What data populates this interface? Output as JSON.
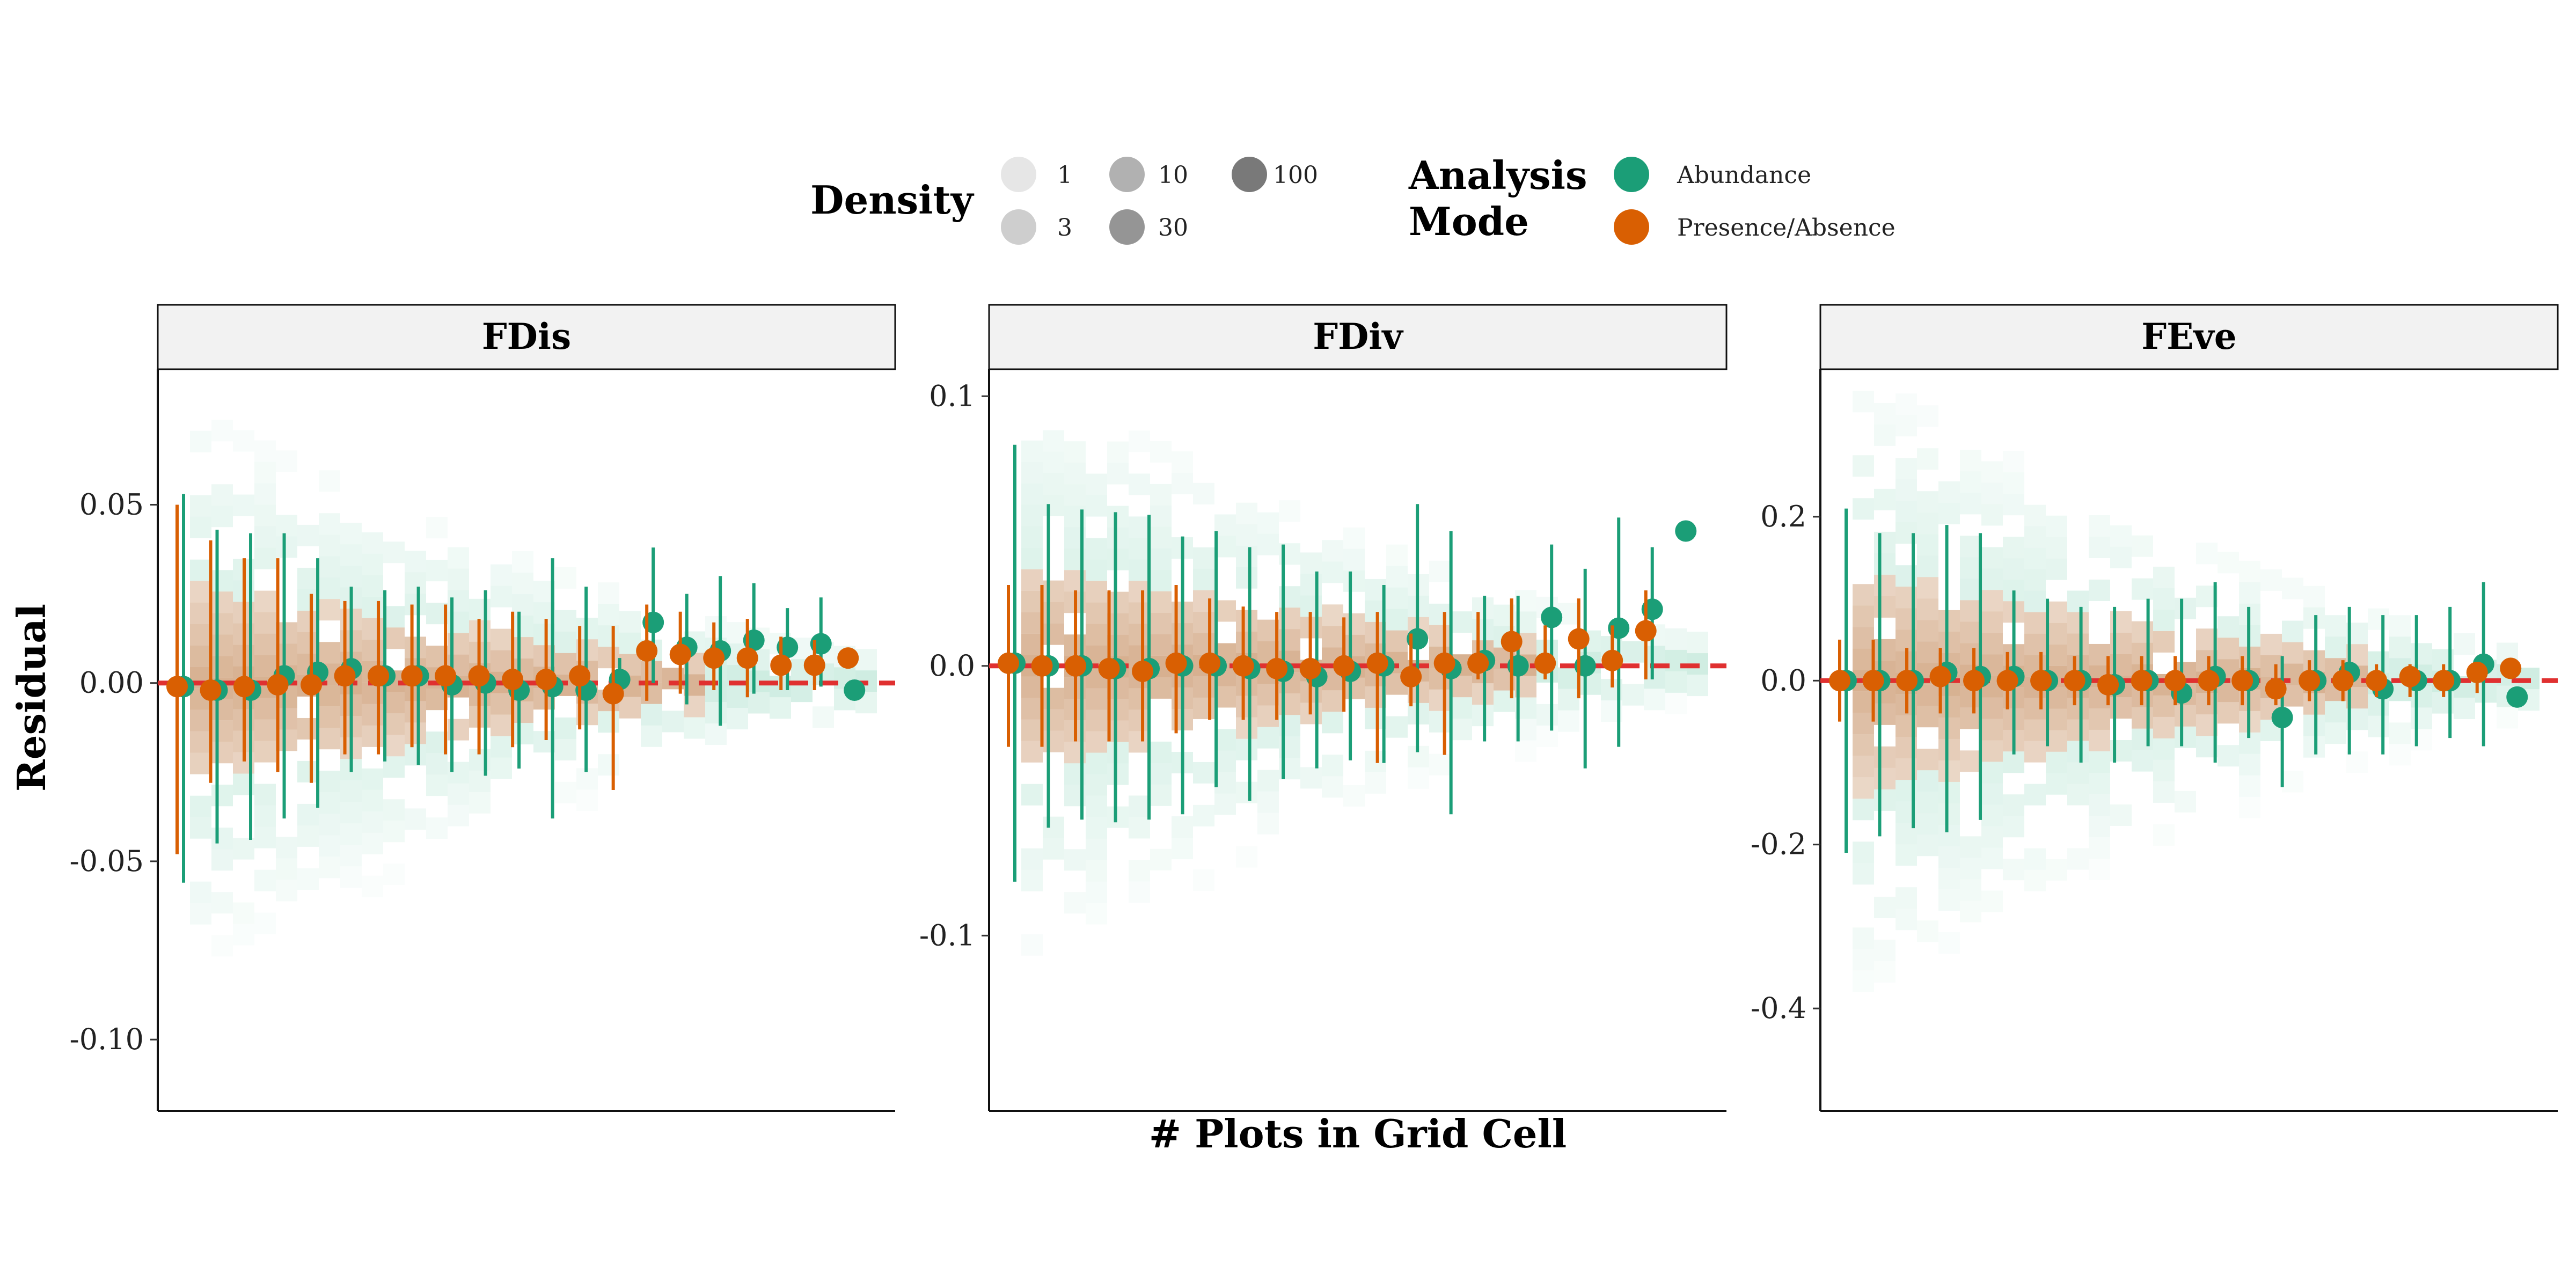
{
  "legend": {
    "density": {
      "title": "Density",
      "items": [
        {
          "label": "1",
          "opacity": 0.12
        },
        {
          "label": "3",
          "opacity": 0.24
        },
        {
          "label": "10",
          "opacity": 0.38
        },
        {
          "label": "30",
          "opacity": 0.52
        },
        {
          "label": "100",
          "opacity": 0.66
        }
      ]
    },
    "mode": {
      "title_line1": "Analysis",
      "title_line2": "Mode",
      "items": [
        {
          "label": "Abundance",
          "color": "#1b9e77"
        },
        {
          "label": "Presence/Absence",
          "color": "#d95f02"
        }
      ]
    }
  },
  "chart_data": {
    "type": "scatter",
    "xlabel": "# Plots in Grid Cell",
    "ylabel": "Residual",
    "reference_line": {
      "y": 0,
      "color": "#e03030",
      "style": "dashed"
    },
    "colors": {
      "Abundance": "#1b9e77",
      "Presence/Absence": "#d95f02"
    },
    "panels": [
      {
        "title": "FDis",
        "ylim": [
          -0.12,
          0.088
        ],
        "yticks": [
          0.05,
          0.0,
          -0.05,
          -0.1
        ],
        "ytick_labels": [
          "0.05",
          "0.00",
          "-0.05",
          "-0.10"
        ],
        "series": [
          {
            "name": "Abundance",
            "x": [
              1,
              2,
              3,
              4,
              5,
              6,
              7,
              8,
              9,
              10,
              11,
              12,
              13,
              14,
              15,
              16,
              17,
              18,
              19,
              20,
              21
            ],
            "y": [
              -0.001,
              -0.002,
              -0.002,
              0.002,
              0.003,
              0.004,
              0.002,
              0.002,
              -0.0005,
              0.0,
              -0.002,
              -0.001,
              -0.002,
              0.001,
              0.017,
              0.01,
              0.009,
              0.012,
              0.01,
              0.011,
              -0.002
            ],
            "lo": [
              -0.056,
              -0.045,
              -0.044,
              -0.038,
              -0.035,
              -0.025,
              -0.022,
              -0.023,
              -0.025,
              -0.026,
              -0.024,
              -0.038,
              -0.025,
              -0.005,
              0.0,
              -0.006,
              -0.012,
              -0.003,
              -0.002,
              -0.001,
              null
            ],
            "hi": [
              0.053,
              0.043,
              0.042,
              0.042,
              0.035,
              0.027,
              0.026,
              0.027,
              0.024,
              0.026,
              0.02,
              0.035,
              0.027,
              0.007,
              0.038,
              0.025,
              0.03,
              0.028,
              0.021,
              0.024,
              null
            ]
          },
          {
            "name": "Presence/Absence",
            "x": [
              1,
              2,
              3,
              4,
              5,
              6,
              7,
              8,
              9,
              10,
              11,
              12,
              13,
              14,
              15,
              16,
              17,
              18,
              19,
              20,
              21
            ],
            "y": [
              -0.001,
              -0.002,
              -0.001,
              -0.0005,
              -0.0005,
              0.002,
              0.002,
              0.002,
              0.002,
              0.002,
              0.001,
              0.001,
              0.002,
              -0.003,
              0.009,
              0.008,
              0.007,
              0.007,
              0.005,
              0.005,
              0.007
            ],
            "lo": [
              -0.048,
              -0.028,
              -0.022,
              -0.025,
              -0.028,
              -0.02,
              -0.02,
              -0.018,
              -0.02,
              -0.02,
              -0.018,
              -0.016,
              -0.013,
              -0.03,
              -0.005,
              -0.003,
              -0.002,
              -0.004,
              -0.002,
              -0.002,
              null
            ],
            "hi": [
              0.05,
              0.04,
              0.035,
              0.035,
              0.025,
              0.023,
              0.023,
              0.022,
              0.022,
              0.018,
              0.02,
              0.018,
              0.016,
              0.016,
              0.022,
              0.02,
              0.017,
              0.018,
              0.013,
              0.012,
              null
            ]
          }
        ]
      },
      {
        "title": "FDiv",
        "ylim": [
          -0.165,
          0.11
        ],
        "yticks": [
          0.1,
          0.0,
          -0.1
        ],
        "ytick_labels": [
          "0.1",
          "0.0",
          "-0.1"
        ],
        "series": [
          {
            "name": "Abundance",
            "x": [
              1,
              2,
              3,
              4,
              5,
              6,
              7,
              8,
              9,
              10,
              11,
              12,
              13,
              14,
              15,
              16,
              17,
              18,
              19,
              20,
              21
            ],
            "y": [
              0.001,
              0.0,
              0.0,
              -0.001,
              -0.001,
              0.0,
              0.0,
              -0.001,
              -0.002,
              -0.004,
              -0.002,
              0.0,
              0.01,
              -0.001,
              0.002,
              0.0,
              0.018,
              0.0,
              0.014,
              0.021,
              0.05
            ],
            "lo": [
              -0.08,
              -0.06,
              -0.057,
              -0.058,
              -0.057,
              -0.055,
              -0.045,
              -0.05,
              -0.042,
              -0.038,
              -0.035,
              -0.036,
              -0.032,
              -0.055,
              -0.028,
              -0.028,
              -0.024,
              -0.038,
              -0.03,
              -0.005,
              null
            ],
            "hi": [
              0.082,
              0.06,
              0.058,
              0.057,
              0.056,
              0.048,
              0.05,
              0.044,
              0.045,
              0.035,
              0.035,
              0.03,
              0.06,
              0.05,
              0.026,
              0.026,
              0.045,
              0.036,
              0.055,
              0.044,
              null
            ]
          },
          {
            "name": "Presence/Absence",
            "x": [
              1,
              2,
              3,
              4,
              5,
              6,
              7,
              8,
              9,
              10,
              11,
              12,
              13,
              14,
              15,
              16,
              17,
              18,
              19,
              20,
              21
            ],
            "y": [
              0.001,
              0.0,
              0.0,
              -0.001,
              -0.002,
              0.001,
              0.001,
              0.0,
              -0.001,
              -0.001,
              0.0,
              0.001,
              -0.004,
              0.001,
              0.001,
              0.009,
              0.001,
              0.01,
              0.002,
              0.013,
              null
            ],
            "lo": [
              -0.03,
              -0.03,
              -0.028,
              -0.028,
              -0.028,
              -0.025,
              -0.02,
              -0.02,
              -0.02,
              -0.018,
              -0.017,
              -0.036,
              -0.015,
              -0.033,
              -0.005,
              -0.012,
              -0.005,
              -0.012,
              -0.008,
              -0.005,
              null
            ],
            "hi": [
              0.03,
              0.03,
              0.028,
              0.028,
              0.028,
              0.03,
              0.025,
              0.022,
              0.02,
              0.02,
              0.018,
              0.02,
              0.012,
              0.02,
              0.02,
              0.025,
              0.015,
              0.025,
              0.015,
              0.028,
              null
            ]
          }
        ]
      },
      {
        "title": "FEve",
        "ylim": [
          -0.525,
          0.38
        ],
        "yticks": [
          0.2,
          0.0,
          -0.2,
          -0.4
        ],
        "ytick_labels": [
          "0.2",
          "0.0",
          "-0.2",
          "-0.4"
        ],
        "series": [
          {
            "name": "Abundance",
            "x": [
              1,
              2,
              3,
              4,
              5,
              6,
              7,
              8,
              9,
              10,
              11,
              12,
              13,
              14,
              15,
              16,
              17,
              18,
              19,
              20,
              21
            ],
            "y": [
              0.0,
              0.0,
              0.0,
              0.01,
              0.005,
              0.005,
              0.0,
              0.0,
              -0.005,
              0.0,
              -0.015,
              0.005,
              0.0,
              -0.045,
              0.0,
              0.01,
              -0.01,
              0.0,
              0.0,
              0.02,
              -0.02
            ],
            "lo": [
              -0.21,
              -0.19,
              -0.18,
              -0.185,
              -0.17,
              -0.09,
              -0.08,
              -0.1,
              -0.1,
              -0.08,
              -0.08,
              -0.1,
              -0.07,
              -0.13,
              -0.09,
              -0.09,
              -0.09,
              -0.08,
              -0.07,
              -0.08,
              null
            ],
            "hi": [
              0.21,
              0.18,
              0.18,
              0.19,
              0.18,
              0.11,
              0.1,
              0.09,
              0.09,
              0.1,
              0.1,
              0.12,
              0.09,
              0.03,
              0.08,
              0.09,
              0.08,
              0.08,
              0.09,
              0.12,
              null
            ]
          },
          {
            "name": "Presence/Absence",
            "x": [
              1,
              2,
              3,
              4,
              5,
              6,
              7,
              8,
              9,
              10,
              11,
              12,
              13,
              14,
              15,
              16,
              17,
              18,
              19,
              20,
              21
            ],
            "y": [
              0.0,
              0.0,
              0.0,
              0.005,
              0.0,
              0.0,
              0.0,
              0.0,
              -0.005,
              0.0,
              0.0,
              0.0,
              0.0,
              -0.01,
              0.0,
              0.0,
              0.0,
              0.005,
              0.0,
              0.01,
              0.015
            ],
            "lo": [
              -0.05,
              -0.05,
              -0.04,
              -0.04,
              -0.04,
              -0.035,
              -0.035,
              -0.03,
              -0.03,
              -0.03,
              -0.03,
              -0.03,
              -0.03,
              -0.03,
              -0.025,
              -0.025,
              -0.02,
              -0.02,
              -0.02,
              -0.015,
              null
            ],
            "hi": [
              0.05,
              0.05,
              0.04,
              0.04,
              0.04,
              0.035,
              0.035,
              0.03,
              0.03,
              0.03,
              0.03,
              0.03,
              0.03,
              0.02,
              0.025,
              0.025,
              0.02,
              0.02,
              0.02,
              0.02,
              null
            ]
          }
        ]
      }
    ]
  }
}
